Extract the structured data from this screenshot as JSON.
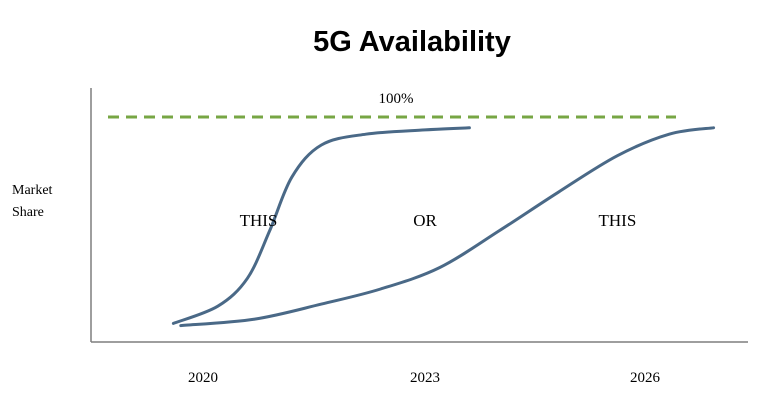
{
  "chart_data": {
    "type": "line",
    "title": "5G Availability",
    "ylabel_lines": [
      "Market",
      "Share"
    ],
    "xlabel": "",
    "x_ticks": [
      "2020",
      "2023",
      "2026"
    ],
    "ylim": [
      0,
      100
    ],
    "reference_line": {
      "label": "100%",
      "value": 100,
      "color": "#77A644",
      "style": "dashed"
    },
    "series": [
      {
        "color": "#4A6987",
        "points": [
          [
            2019.6,
            4
          ],
          [
            2020.2,
            12
          ],
          [
            2020.6,
            25
          ],
          [
            2020.9,
            47
          ],
          [
            2021.2,
            72
          ],
          [
            2021.6,
            87
          ],
          [
            2022.2,
            92
          ],
          [
            2023.0,
            94
          ],
          [
            2023.6,
            95
          ]
        ]
      },
      {
        "color": "#4A6987",
        "points": [
          [
            2019.7,
            3
          ],
          [
            2020.7,
            6
          ],
          [
            2021.6,
            13
          ],
          [
            2022.4,
            20
          ],
          [
            2023.2,
            30
          ],
          [
            2024.0,
            47
          ],
          [
            2024.8,
            65
          ],
          [
            2025.6,
            82
          ],
          [
            2026.3,
            92
          ],
          [
            2026.9,
            95
          ]
        ]
      }
    ],
    "annotations": [
      {
        "text": "THIS",
        "x": 2020.75,
        "y": 52
      },
      {
        "text": "OR",
        "x": 2023.0,
        "y": 52
      },
      {
        "text": "THIS",
        "x": 2025.6,
        "y": 52
      }
    ]
  }
}
